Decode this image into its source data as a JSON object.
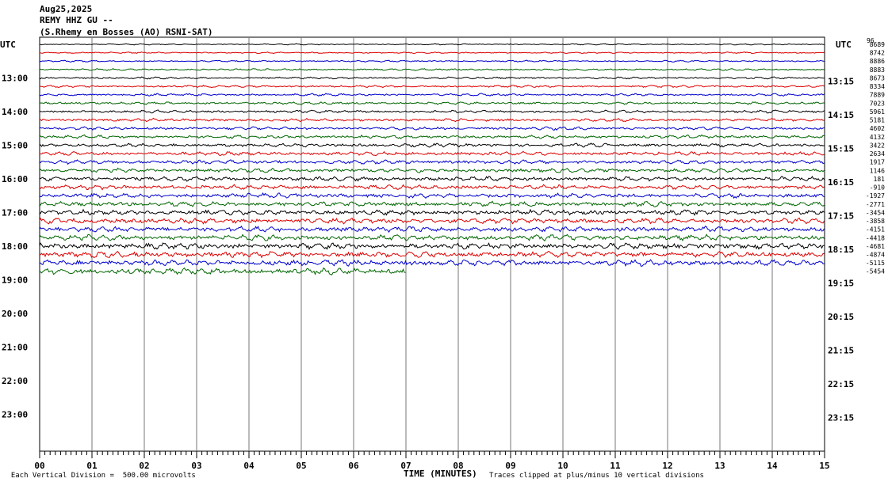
{
  "header": {
    "date": "Aug25,2025",
    "station": "REMY HHZ GU --",
    "location": "(S.Rhemy en Bosses (AO) RSNI-SAT)"
  },
  "utc_left_label": "UTC",
  "utc_right_label": "UTC",
  "footer": {
    "scale_note": "Each Vertical Division =  500.00 microvolts",
    "x_title": "TIME (MINUTES)",
    "clip_note": "Traces clipped at plus/minus 10 vertical divisions"
  },
  "colors": {
    "trace_cycle": [
      "#000000",
      "#dd0000",
      "#0000cc",
      "#006600"
    ],
    "grid": "#777777"
  },
  "chart_data": {
    "type": "line",
    "subtype": "helicorder",
    "x_label": "TIME (MINUTES)",
    "x_ticks": [
      "00",
      "01",
      "02",
      "03",
      "04",
      "05",
      "06",
      "07",
      "08",
      "09",
      "10",
      "11",
      "12",
      "13",
      "14",
      "15"
    ],
    "xlim": [
      0,
      15
    ],
    "left_hour_labels": [
      "13:00",
      "14:00",
      "15:00",
      "16:00",
      "17:00",
      "18:00",
      "19:00",
      "20:00",
      "21:00",
      "22:00",
      "23:00"
    ],
    "right_hour_labels": [
      "13:15",
      "14:15",
      "15:15",
      "16:15",
      "17:15",
      "18:15",
      "19:15",
      "20:15",
      "21:15",
      "22:15",
      "23:15"
    ],
    "trace_offsets": [
      "8689",
      "8742",
      "8886",
      "8883",
      "8673",
      "8334",
      "7889",
      "7023",
      "5961",
      "5181",
      "4602",
      "4132",
      "3422",
      "2634",
      "1917",
      "1146",
      "181",
      "-910",
      "-1927",
      "-2771",
      "-3454",
      "-3858",
      "-4151",
      "-4418",
      "-4681",
      "-4874",
      "-5115",
      "-5454"
    ],
    "first_offset_overlap_label": "96",
    "last_trace_end_minute": 7.0,
    "line_count": 28,
    "lines_per_hour": 4
  }
}
